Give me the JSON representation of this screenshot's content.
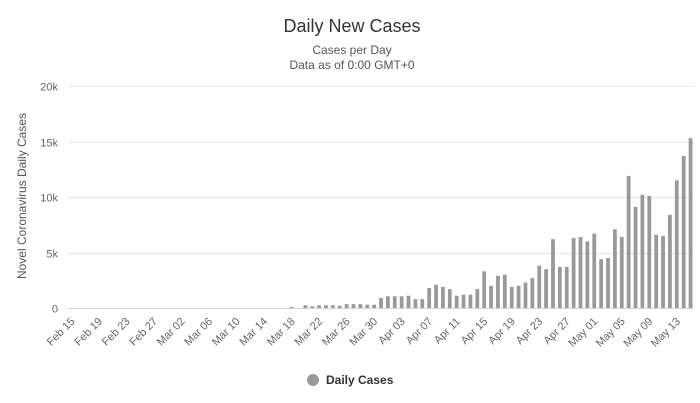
{
  "chart_data": {
    "type": "bar",
    "title": "Daily New Cases",
    "subtitle_line1": "Cases per Day",
    "subtitle_line2": "Data as of 0:00 GMT+0",
    "xlabel": "",
    "ylabel": "Novel Coronavirus Daily Cases",
    "ylim": [
      0,
      20000
    ],
    "yticks": [
      0,
      5000,
      10000,
      15000,
      20000
    ],
    "ytick_labels": [
      "0",
      "5k",
      "10k",
      "15k",
      "20k"
    ],
    "grid": true,
    "legend_position": "bottom-center",
    "bar_color": "#999999",
    "categories": [
      "Feb 15",
      "Feb 16",
      "Feb 17",
      "Feb 18",
      "Feb 19",
      "Feb 20",
      "Feb 21",
      "Feb 22",
      "Feb 23",
      "Feb 24",
      "Feb 25",
      "Feb 26",
      "Feb 27",
      "Feb 28",
      "Feb 29",
      "Mar 01",
      "Mar 02",
      "Mar 03",
      "Mar 04",
      "Mar 05",
      "Mar 06",
      "Mar 07",
      "Mar 08",
      "Mar 09",
      "Mar 10",
      "Mar 11",
      "Mar 12",
      "Mar 13",
      "Mar 14",
      "Mar 15",
      "Mar 16",
      "Mar 17",
      "Mar 18",
      "Mar 19",
      "Mar 20",
      "Mar 21",
      "Mar 22",
      "Mar 23",
      "Mar 24",
      "Mar 25",
      "Mar 26",
      "Mar 27",
      "Mar 28",
      "Mar 29",
      "Mar 30",
      "Mar 31",
      "Apr 01",
      "Apr 02",
      "Apr 03",
      "Apr 04",
      "Apr 05",
      "Apr 06",
      "Apr 07",
      "Apr 08",
      "Apr 09",
      "Apr 10",
      "Apr 11",
      "Apr 12",
      "Apr 13",
      "Apr 14",
      "Apr 15",
      "Apr 16",
      "Apr 17",
      "Apr 18",
      "Apr 19",
      "Apr 20",
      "Apr 21",
      "Apr 22",
      "Apr 23",
      "Apr 24",
      "Apr 25",
      "Apr 26",
      "Apr 27",
      "Apr 28",
      "Apr 29",
      "Apr 30",
      "May 01",
      "May 02",
      "May 03",
      "May 04",
      "May 05",
      "May 06",
      "May 07",
      "May 08",
      "May 09",
      "May 10",
      "May 11",
      "May 12",
      "May 13",
      "May 14",
      "May 15"
    ],
    "xtick_labels": [
      "Feb 15",
      "Feb 19",
      "Feb 23",
      "Feb 27",
      "Mar 02",
      "Mar 06",
      "Mar 10",
      "Mar 14",
      "Mar 18",
      "Mar 22",
      "Mar 26",
      "Mar 30",
      "Apr 03",
      "Apr 07",
      "Apr 11",
      "Apr 15",
      "Apr 19",
      "Apr 23",
      "Apr 27",
      "May 01",
      "May 05",
      "May 09",
      "May 13"
    ],
    "series": [
      {
        "name": "Daily Cases",
        "values": [
          0,
          0,
          0,
          0,
          0,
          0,
          0,
          0,
          0,
          0,
          0,
          0,
          0,
          0,
          0,
          0,
          0,
          0,
          0,
          0,
          0,
          0,
          0,
          0,
          0,
          0,
          0,
          0,
          0,
          0,
          0,
          0,
          100,
          0,
          250,
          150,
          250,
          250,
          250,
          200,
          350,
          350,
          350,
          300,
          300,
          900,
          1050,
          1050,
          1050,
          1100,
          800,
          800,
          1800,
          2100,
          1900,
          1700,
          1100,
          1200,
          1200,
          1700,
          3300,
          2000,
          2900,
          3000,
          1900,
          2000,
          2300,
          2700,
          3800,
          3500,
          6200,
          3700,
          3700,
          6300,
          6400,
          6000,
          6700,
          4400,
          4500,
          7100,
          6400,
          11900,
          9100,
          10200,
          10100,
          6600,
          6500,
          8400,
          11500,
          13700,
          15300
        ]
      }
    ]
  }
}
